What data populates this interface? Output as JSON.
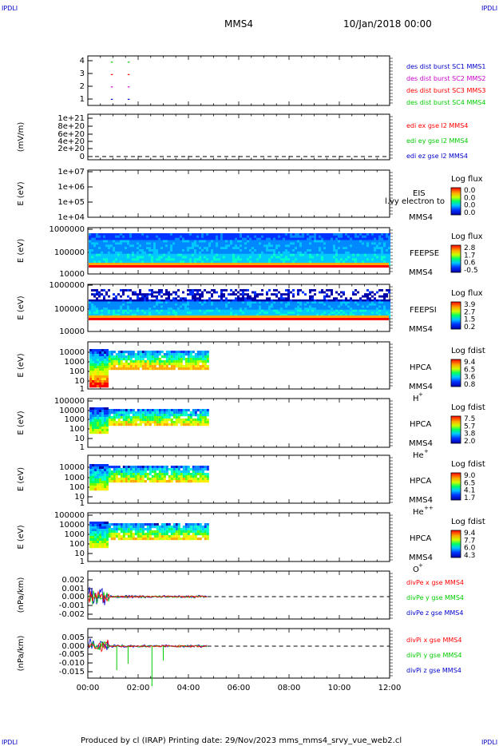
{
  "corner_marks": {
    "top_left": "IPDLI",
    "top_right": "IPDLI",
    "bottom_left": "IPDLI",
    "bottom_right": "IPDLI"
  },
  "header": {
    "spacecraft": "MMS4",
    "date": "10/Jan/2018 00:00"
  },
  "footer": {
    "text": "Produced by cl (IRAP)    Printing date: 29/Nov/2023    mms_mms4_srvy_vue_web2.cl"
  },
  "colors": {
    "red": "#ff0000",
    "green": "#00cc00",
    "blue": "#0000cc",
    "magenta": "#cc00cc",
    "dashed": "#000000"
  },
  "chart_data": [
    {
      "type": "scatter",
      "panel": "burst",
      "yticks": [
        "4",
        "3",
        "2",
        "1"
      ],
      "ylim": [
        0.5,
        4.5
      ],
      "series": [
        {
          "name": "des dist burst SC1 MMS1",
          "color": "#0000cc",
          "y": 1,
          "x": [
            "00:55",
            "01:35"
          ]
        },
        {
          "name": "des dist burst SC2 MMS2",
          "color": "#cc00cc",
          "y": 2,
          "x": [
            "00:55",
            "01:35"
          ]
        },
        {
          "name": "des dist burst SC3 MMS3",
          "color": "#ff0000",
          "y": 3,
          "x": [
            "00:55",
            "01:35"
          ]
        },
        {
          "name": "des dist burst SC4 MMS4",
          "color": "#00cc00",
          "y": 4,
          "x": [
            "00:55",
            "01:35"
          ]
        }
      ]
    },
    {
      "type": "line",
      "panel": "edi",
      "ylabel": "(mV/m)",
      "yticks": [
        "1e+21",
        "8e+20",
        "6e+20",
        "4e+20",
        "2e+20",
        "0"
      ],
      "ylim": [
        0,
        1e+21
      ],
      "series": [
        {
          "name": "edi ex gse l2 MMS4",
          "color": "#ff0000"
        },
        {
          "name": "edi ey gse l2 MMS4",
          "color": "#00cc00"
        },
        {
          "name": "edi ez gse l2 MMS4",
          "color": "#0000cc"
        }
      ]
    },
    {
      "type": "heatmap",
      "panel": "eis",
      "ylabel": "E (eV)",
      "yticks": [
        "1e+07",
        "1e+06",
        "1e+05",
        "1e+04"
      ],
      "labels": [
        "EIS",
        "MMS4"
      ],
      "overlay_text": "l.vy electron to",
      "colorbar": {
        "title": "Log flux",
        "ticks": [
          "0.0",
          "0.0",
          "0.0",
          "0.0"
        ]
      }
    },
    {
      "type": "heatmap",
      "panel": "feepse",
      "ylabel": "E (eV)",
      "yticks": [
        "1000000",
        "100000",
        "10000"
      ],
      "labels": [
        "FEEPSE",
        "MMS4"
      ],
      "colorbar": {
        "title": "Log flux",
        "ticks": [
          "2.8",
          "1.7",
          "0.6",
          "-0.5"
        ]
      }
    },
    {
      "type": "heatmap",
      "panel": "feepsi",
      "ylabel": "E (eV)",
      "yticks": [
        "1000000",
        "100000",
        "10000"
      ],
      "labels": [
        "FEEPSI",
        "MMS4"
      ],
      "colorbar": {
        "title": "Log flux",
        "ticks": [
          "3.9",
          "2.7",
          "1.5",
          "0.2"
        ]
      }
    },
    {
      "type": "heatmap",
      "panel": "hpca_h",
      "ylabel": "E (eV)",
      "yticks": [
        "10000",
        "1000",
        "100",
        "10",
        "1"
      ],
      "labels": [
        "HPCA",
        "MMS4"
      ],
      "species": "H",
      "species_sup": "+",
      "colorbar": {
        "title": "Log fdist",
        "ticks": [
          "9.4",
          "6.5",
          "3.6",
          "0.8"
        ]
      }
    },
    {
      "type": "heatmap",
      "panel": "hpca_he",
      "ylabel": "E (eV)",
      "yticks": [
        "100000",
        "10000",
        "1000",
        "100",
        "10",
        "1"
      ],
      "labels": [
        "HPCA",
        "MMS4"
      ],
      "species": "He",
      "species_sup": "+",
      "colorbar": {
        "title": "Log fdist",
        "ticks": [
          "7.5",
          "5.7",
          "3.8",
          "2.0"
        ]
      }
    },
    {
      "type": "heatmap",
      "panel": "hpca_hepp",
      "ylabel": "E (eV)",
      "yticks": [
        "10000",
        "1000",
        "100",
        "10",
        "1"
      ],
      "labels": [
        "HPCA",
        "MMS4"
      ],
      "species": "He",
      "species_sup": "++",
      "colorbar": {
        "title": "Log fdist",
        "ticks": [
          "9.0",
          "6.5",
          "4.1",
          "1.7"
        ]
      }
    },
    {
      "type": "heatmap",
      "panel": "hpca_o",
      "ylabel": "E (eV)",
      "yticks": [
        "100000",
        "10000",
        "1000",
        "100",
        "10",
        "1"
      ],
      "labels": [
        "HPCA",
        "MMS4"
      ],
      "species": "O",
      "species_sup": "+",
      "colorbar": {
        "title": "Log fdist",
        "ticks": [
          "9.4",
          "7.7",
          "6.0",
          "4.3"
        ]
      }
    },
    {
      "type": "line",
      "panel": "divpe",
      "ylabel": "(nPa/km)",
      "yticks": [
        "0.002",
        "0.001",
        "0.000",
        "-0.001",
        "-0.002"
      ],
      "ylim": [
        -0.0025,
        0.003
      ],
      "series": [
        {
          "name": "divPe x gse MMS4",
          "color": "#ff0000"
        },
        {
          "name": "divPe y gse MMS4",
          "color": "#00cc00"
        },
        {
          "name": "divPe z gse MMS4",
          "color": "#0000cc"
        }
      ]
    },
    {
      "type": "line",
      "panel": "divpi",
      "ylabel": "(nPa/km)",
      "yticks": [
        "0.005",
        "0.000",
        "-0.005",
        "-0.010",
        "-0.015"
      ],
      "ylim": [
        -0.018,
        0.009
      ],
      "series": [
        {
          "name": "divPi x gse MMS4",
          "color": "#ff0000"
        },
        {
          "name": "divPi y gse MMS4",
          "color": "#00cc00"
        },
        {
          "name": "divPi z gse MMS4",
          "color": "#0000cc"
        }
      ]
    }
  ],
  "time_axis": {
    "ticks": [
      "00:00",
      "02:00",
      "04:00",
      "06:00",
      "08:00",
      "10:00",
      "12:00"
    ],
    "range_hours": [
      0,
      12
    ]
  }
}
